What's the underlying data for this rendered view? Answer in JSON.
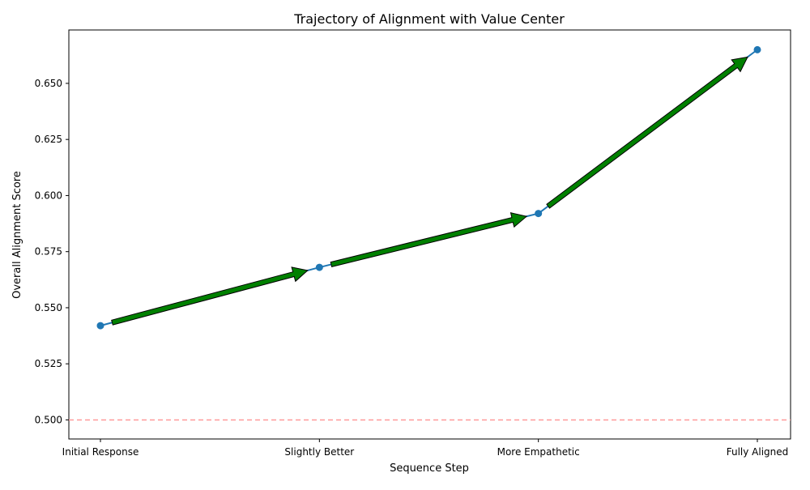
{
  "chart_data": {
    "type": "line",
    "title": "Trajectory of Alignment with Value Center",
    "xlabel": "Sequence Step",
    "ylabel": "Overall Alignment Score",
    "categories": [
      "Initial Response",
      "Slightly Better",
      "More Empathetic",
      "Fully Aligned"
    ],
    "series": [
      {
        "values": [
          0.542,
          0.568,
          0.592,
          0.665
        ]
      }
    ],
    "ylim": [
      0.4915,
      0.6738
    ],
    "yticks": [
      "0.500",
      "0.525",
      "0.550",
      "0.575",
      "0.600",
      "0.625",
      "0.650"
    ],
    "reference_line": {
      "y": 0.5,
      "style": "dashed"
    },
    "arrows_between_points": true,
    "grid": false,
    "colors": {
      "line": "#1f77b4",
      "marker": "#1f77b4",
      "arrow_fill": "#008000",
      "arrow_edge": "#000000",
      "reference_line": "#ff9999"
    }
  }
}
